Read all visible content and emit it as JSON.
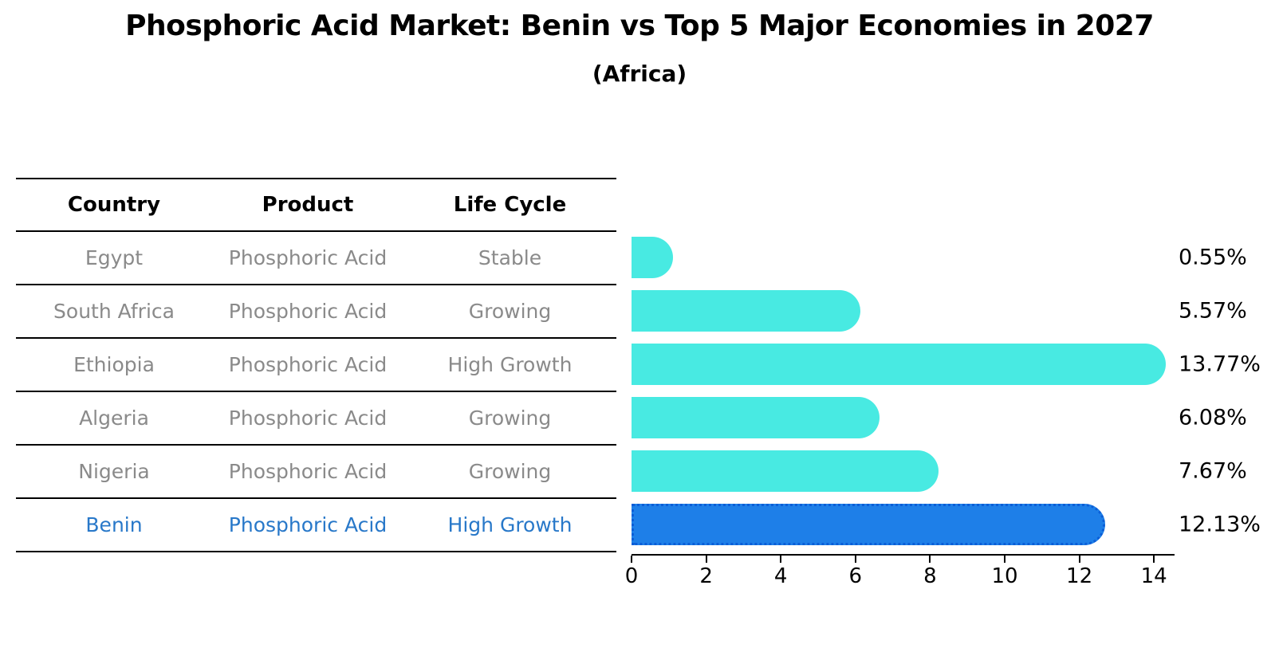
{
  "title": "Phosphoric Acid Market: Benin vs Top 5 Major Economies in 2027",
  "subtitle": "(Africa)",
  "colors": {
    "bar": "#48EAE2",
    "highlight_bar": "#1E7FE8",
    "highlight_border": "#0B5ED7",
    "row_text": "#8A8A8A",
    "highlight_text": "#2878C9",
    "header_text": "#000000",
    "line": "#000000"
  },
  "table": {
    "columns": [
      "Country",
      "Product",
      "Life Cycle"
    ],
    "rows": [
      {
        "country": "Egypt",
        "product": "Phosphoric Acid",
        "life_cycle": "Stable",
        "highlight": false
      },
      {
        "country": "South Africa",
        "product": "Phosphoric Acid",
        "life_cycle": "Growing",
        "highlight": false
      },
      {
        "country": "Ethiopia",
        "product": "Phosphoric Acid",
        "life_cycle": "High Growth",
        "highlight": false
      },
      {
        "country": "Algeria",
        "product": "Phosphoric Acid",
        "life_cycle": "Growing",
        "highlight": false
      },
      {
        "country": "Nigeria",
        "product": "Phosphoric Acid",
        "life_cycle": "Growing",
        "highlight": false
      },
      {
        "country": "Benin",
        "product": "Phosphoric Acid",
        "life_cycle": "High Growth",
        "highlight": true
      }
    ]
  },
  "chart_data": {
    "type": "bar",
    "orientation": "horizontal",
    "title": "Phosphoric Acid Market: Benin vs Top 5 Major Economies in 2027",
    "subtitle": "(Africa)",
    "categories": [
      "Egypt",
      "South Africa",
      "Ethiopia",
      "Algeria",
      "Nigeria",
      "Benin"
    ],
    "values": [
      0.55,
      5.57,
      13.77,
      6.08,
      7.67,
      12.13
    ],
    "labels": [
      "0.55%",
      "5.57%",
      "13.77%",
      "6.08%",
      "7.67%",
      "12.13%"
    ],
    "highlight_index": 5,
    "xlabel": "",
    "ylabel": "",
    "xlim": [
      0,
      14.55
    ],
    "xticks": [
      0,
      2,
      4,
      6,
      8,
      10,
      12,
      14
    ],
    "grid": false,
    "legend": false
  }
}
